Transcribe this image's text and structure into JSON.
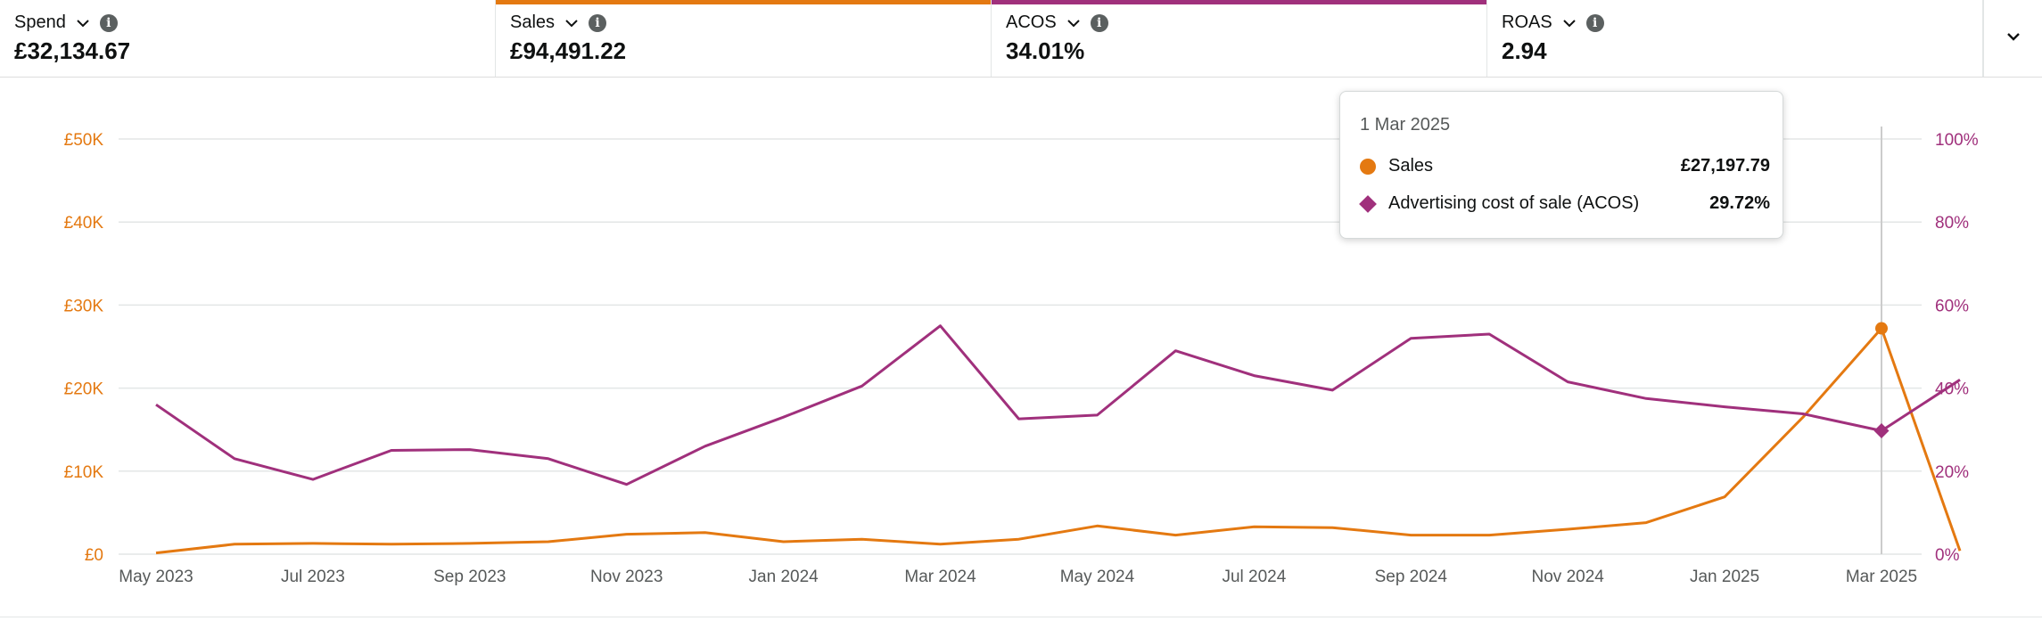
{
  "metrics": [
    {
      "label": "Spend",
      "value": "£32,134.67",
      "accent": null
    },
    {
      "label": "Sales",
      "value": "£94,491.22",
      "accent": "#e47911"
    },
    {
      "label": "ACOS",
      "value": "34.01%",
      "accent": "#a0307c"
    },
    {
      "label": "ROAS",
      "value": "2.94",
      "accent": null
    }
  ],
  "icons": {
    "dropdown": "chevron-down-icon",
    "info": "info-icon",
    "expand": "chevron-down-icon"
  },
  "info_glyph": "i",
  "colors": {
    "sales": "#e47911",
    "acos": "#a0307c",
    "grid": "#e3e6e6",
    "crosshair": "#cccccc"
  },
  "tooltip": {
    "date": "1 Mar 2025",
    "rows": [
      {
        "label": "Sales",
        "value": "£27,197.79"
      },
      {
        "label": "Advertising cost of sale (ACOS)",
        "value": "29.72%"
      }
    ]
  },
  "chart_data": {
    "type": "line",
    "x": [
      "May 2023",
      "Jun 2023",
      "Jul 2023",
      "Aug 2023",
      "Sep 2023",
      "Oct 2023",
      "Nov 2023",
      "Dec 2023",
      "Jan 2024",
      "Feb 2024",
      "Mar 2024",
      "Apr 2024",
      "May 2024",
      "Jun 2024",
      "Jul 2024",
      "Aug 2024",
      "Sep 2024",
      "Oct 2024",
      "Nov 2024",
      "Dec 2024",
      "Jan 2025",
      "Feb 2025",
      "Mar 2025",
      "Apr 2025"
    ],
    "x_tick_labels": [
      "May 2023",
      "Jul 2023",
      "Sep 2023",
      "Nov 2023",
      "Jan 2024",
      "Mar 2024",
      "May 2024",
      "Jul 2024",
      "Sep 2024",
      "Nov 2024",
      "Jan 2025",
      "Mar 2025"
    ],
    "y_left_ticks": [
      "£0",
      "£10K",
      "£20K",
      "£30K",
      "£40K",
      "£50K"
    ],
    "y_right_ticks": [
      "0%",
      "20%",
      "40%",
      "60%",
      "80%",
      "100%"
    ],
    "y_left_range": [
      0,
      50000
    ],
    "y_right_range": [
      0,
      100
    ],
    "grid": true,
    "highlight_index": 22,
    "series": [
      {
        "name": "Sales",
        "axis": "left",
        "color": "#e47911",
        "values": [
          150,
          1200,
          1300,
          1200,
          1300,
          1500,
          2400,
          2600,
          1500,
          1800,
          1200,
          1800,
          3400,
          2300,
          3300,
          3200,
          2300,
          2300,
          3000,
          3800,
          6900,
          16500,
          27197.79,
          400
        ]
      },
      {
        "name": "Advertising cost of sale (ACOS)",
        "axis": "right",
        "color": "#a0307c",
        "values": [
          36,
          23,
          18,
          25,
          25.2,
          23,
          16.8,
          26,
          33,
          40.5,
          55,
          32.6,
          33.5,
          49,
          43,
          39.5,
          52,
          53,
          41.5,
          37.5,
          35.5,
          33.8,
          29.72,
          42
        ]
      }
    ]
  }
}
